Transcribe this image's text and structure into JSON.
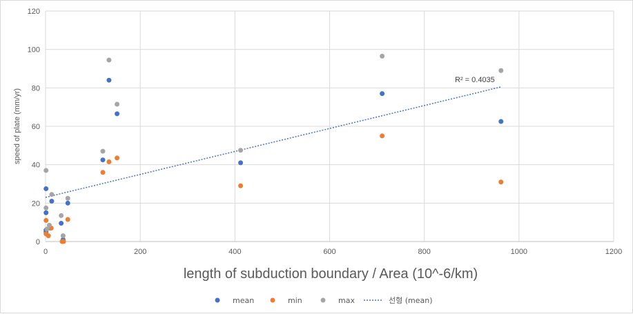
{
  "chart_data": {
    "type": "scatter",
    "title": "",
    "xlabel": "length of subduction boundary / Area (10^-6/km)",
    "ylabel": "speed of plate (mm/yr)",
    "xlim": [
      0,
      1200
    ],
    "ylim": [
      0,
      120
    ],
    "xticks": [
      0,
      200,
      400,
      600,
      800,
      1000,
      1200
    ],
    "yticks": [
      0,
      20,
      40,
      60,
      80,
      100,
      120
    ],
    "grid": true,
    "legend_position": "bottom",
    "series": [
      {
        "name": "mean",
        "color": "#4472c4",
        "points": [
          {
            "x": 1,
            "y": 27.5
          },
          {
            "x": 1,
            "y": 15
          },
          {
            "x": 1,
            "y": 6
          },
          {
            "x": 1,
            "y": 5
          },
          {
            "x": 13,
            "y": 21
          },
          {
            "x": 10,
            "y": 7
          },
          {
            "x": 33,
            "y": 9.5
          },
          {
            "x": 37,
            "y": 1
          },
          {
            "x": 47,
            "y": 20
          },
          {
            "x": 121,
            "y": 42.5
          },
          {
            "x": 134,
            "y": 84
          },
          {
            "x": 151,
            "y": 66.5
          },
          {
            "x": 412,
            "y": 41
          },
          {
            "x": 711,
            "y": 77
          },
          {
            "x": 962,
            "y": 62.5
          }
        ]
      },
      {
        "name": "min",
        "color": "#ed7d31",
        "points": [
          {
            "x": 1,
            "y": 11
          },
          {
            "x": 1,
            "y": 4
          },
          {
            "x": 6,
            "y": 3
          },
          {
            "x": 12,
            "y": 7
          },
          {
            "x": 35,
            "y": 0
          },
          {
            "x": 38,
            "y": 0
          },
          {
            "x": 47,
            "y": 11.5
          },
          {
            "x": 121,
            "y": 36
          },
          {
            "x": 134,
            "y": 41.5
          },
          {
            "x": 151,
            "y": 43.5
          },
          {
            "x": 412,
            "y": 29
          },
          {
            "x": 711,
            "y": 55
          },
          {
            "x": 962,
            "y": 31
          }
        ]
      },
      {
        "name": "max",
        "color": "#a5a5a5",
        "points": [
          {
            "x": 1,
            "y": 37
          },
          {
            "x": 1,
            "y": 17.5
          },
          {
            "x": 3,
            "y": 6.5
          },
          {
            "x": 8,
            "y": 8.5
          },
          {
            "x": 13,
            "y": 24.5
          },
          {
            "x": 33,
            "y": 13.5
          },
          {
            "x": 37,
            "y": 3
          },
          {
            "x": 47,
            "y": 22.5
          },
          {
            "x": 121,
            "y": 47
          },
          {
            "x": 134,
            "y": 94.5
          },
          {
            "x": 151,
            "y": 71.5
          },
          {
            "x": 412,
            "y": 47.5
          },
          {
            "x": 711,
            "y": 96.5
          },
          {
            "x": 962,
            "y": 89
          }
        ]
      }
    ],
    "trendline": {
      "name": "선형 (mean)",
      "of_series": "mean",
      "kind": "linear",
      "color": "#4472c4",
      "style": "dotted",
      "from": {
        "x": 0,
        "y": 23
      },
      "to": {
        "x": 962,
        "y": 80.5
      },
      "r2_label": "R² = 0.4035"
    },
    "legend": [
      "mean",
      "min",
      "max",
      "선형 (mean)"
    ]
  }
}
